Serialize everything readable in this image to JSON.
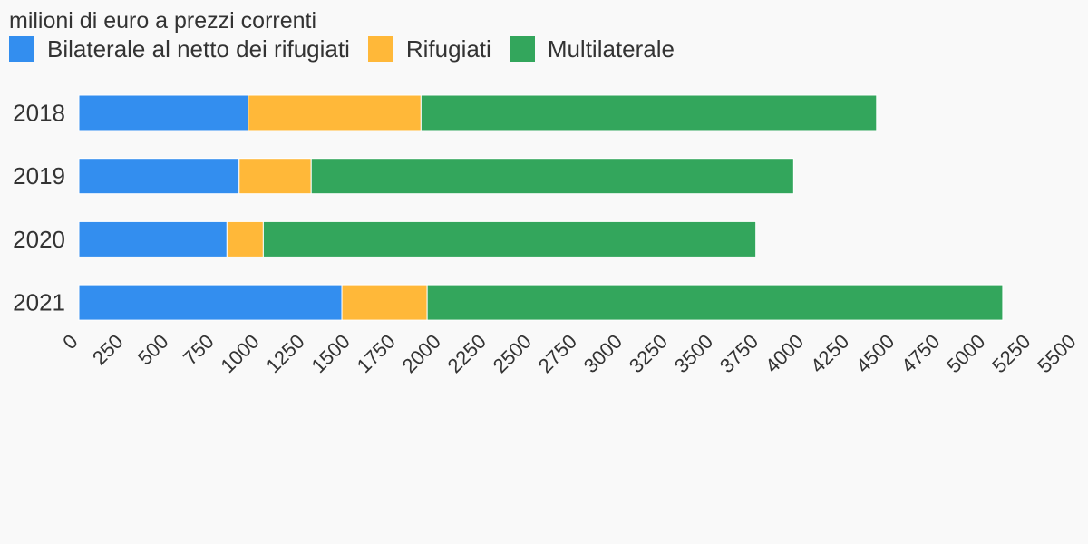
{
  "chart_data": {
    "type": "bar",
    "orientation": "horizontal",
    "stacked": true,
    "subtitle": "milioni di euro a prezzi correnti",
    "categories": [
      "2018",
      "2019",
      "2020",
      "2021"
    ],
    "series": [
      {
        "name": "Bilaterale al netto dei rifugiati",
        "color": "#338eef",
        "values": [
          933,
          883,
          816,
          1449
        ]
      },
      {
        "name": "Rifugiati",
        "color": "#ffb839",
        "values": [
          952,
          397,
          200,
          470
        ]
      },
      {
        "name": "Multilaterale",
        "color": "#33a65c",
        "values": [
          2510,
          2658,
          2714,
          3171
        ]
      }
    ],
    "xlim": [
      0,
      5500
    ],
    "xticks": [
      "0",
      "250",
      "500",
      "750",
      "1000",
      "1250",
      "1500",
      "1750",
      "2000",
      "2250",
      "2500",
      "2750",
      "3000",
      "3250",
      "3500",
      "3750",
      "4000",
      "4250",
      "4500",
      "4750",
      "5000",
      "5250",
      "5500"
    ],
    "grid": false,
    "legend_position": "top-left"
  }
}
